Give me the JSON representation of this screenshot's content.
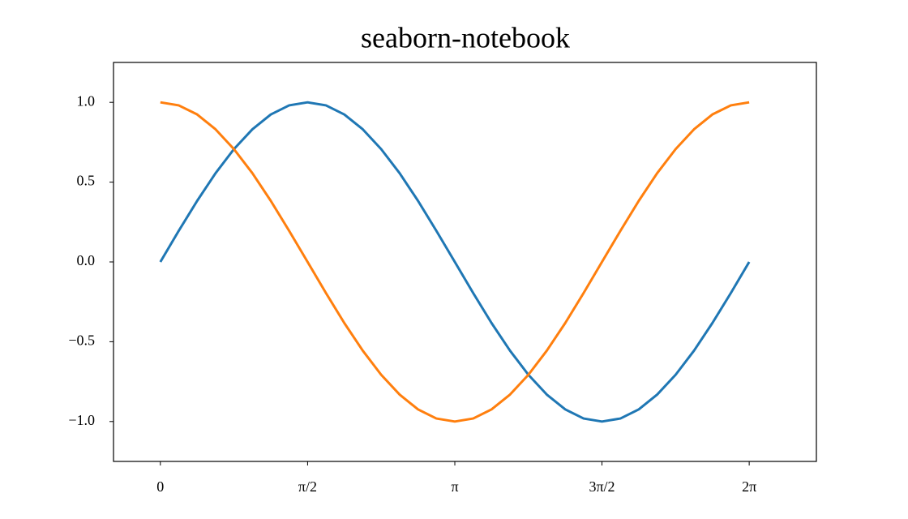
{
  "chart_data": {
    "type": "line",
    "title": "seaborn-notebook",
    "x": [
      0,
      0.196,
      0.393,
      0.589,
      0.785,
      0.982,
      1.178,
      1.374,
      1.571,
      1.767,
      1.963,
      2.16,
      2.356,
      2.553,
      2.749,
      2.945,
      3.142,
      3.338,
      3.534,
      3.731,
      3.927,
      4.123,
      4.32,
      4.516,
      4.712,
      4.909,
      5.105,
      5.301,
      5.498,
      5.694,
      5.89,
      6.087,
      6.283
    ],
    "series": [
      {
        "color": "#1f77b4",
        "values": [
          0,
          0.195,
          0.383,
          0.556,
          0.707,
          0.831,
          0.924,
          0.981,
          1,
          0.981,
          0.924,
          0.831,
          0.707,
          0.556,
          0.383,
          0.195,
          0,
          -0.195,
          -0.383,
          -0.556,
          -0.707,
          -0.831,
          -0.924,
          -0.981,
          -1,
          -0.981,
          -0.924,
          -0.831,
          -0.707,
          -0.556,
          -0.383,
          -0.195,
          0
        ]
      },
      {
        "color": "#ff7f0e",
        "values": [
          1,
          0.981,
          0.924,
          0.831,
          0.707,
          0.556,
          0.383,
          0.195,
          0,
          -0.195,
          -0.383,
          -0.556,
          -0.707,
          -0.831,
          -0.924,
          -0.981,
          -1,
          -0.981,
          -0.924,
          -0.831,
          -0.707,
          -0.556,
          -0.383,
          -0.195,
          0,
          0.195,
          0.383,
          0.556,
          0.707,
          0.831,
          0.924,
          0.981,
          1
        ]
      }
    ],
    "xlim": [
      -0.5,
      7.0
    ],
    "ylim": [
      -1.25,
      1.25
    ],
    "xticks": [
      0,
      {
        "value": 1.571,
        "label": "π/2"
      },
      {
        "value": 3.142,
        "label": "π"
      },
      {
        "value": 4.712,
        "label": "3π/2"
      },
      {
        "value": 6.283,
        "label": "2π"
      }
    ],
    "yticks": [
      {
        "value": -1,
        "label": "−1.0"
      },
      {
        "value": -0.5,
        "label": "−0.5"
      },
      {
        "value": 0,
        "label": "0.0"
      },
      {
        "value": 0.5,
        "label": "0.5"
      },
      {
        "value": 1,
        "label": "1.0"
      }
    ],
    "grid": false
  }
}
